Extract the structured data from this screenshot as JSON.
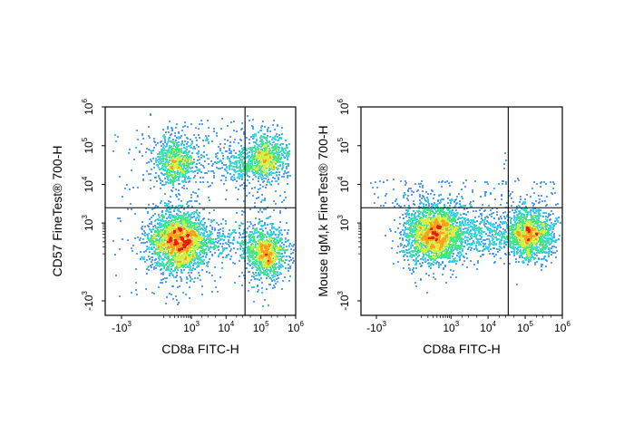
{
  "chart_data": [
    {
      "type": "scatter",
      "subtype": "flow-cytometry-density-dot-plot",
      "title": "",
      "xlabel": "CD8a FITC-H",
      "ylabel": "CD57 FineTest® 700-H",
      "x_scale": "biexponential",
      "y_scale": "biexponential",
      "xlim": [
        -1000,
        1000000
      ],
      "ylim": [
        -1000,
        1000000
      ],
      "x_ticks": [
        {
          "base": "-10",
          "exp": "3",
          "value": -1000
        },
        {
          "base": "10",
          "exp": "3",
          "value": 1000
        },
        {
          "base": "10",
          "exp": "4",
          "value": 10000
        },
        {
          "base": "10",
          "exp": "5",
          "value": 100000
        },
        {
          "base": "10",
          "exp": "6",
          "value": 1000000
        }
      ],
      "y_ticks": [
        {
          "base": "-10",
          "exp": "3",
          "value": -1000
        },
        {
          "base": "10",
          "exp": "3",
          "value": 1000
        },
        {
          "base": "10",
          "exp": "4",
          "value": 10000
        },
        {
          "base": "10",
          "exp": "5",
          "value": 100000
        },
        {
          "base": "10",
          "exp": "6",
          "value": 1000000
        }
      ],
      "quadrant_gate": {
        "x": 35000,
        "y": 2500
      },
      "density_colormap": [
        "#1a10c8",
        "#2a8cff",
        "#19d2e6",
        "#3ce678",
        "#d2f03c",
        "#ffa01e",
        "#e61e14"
      ],
      "populations": [
        {
          "x_center": 400,
          "y_center": 300,
          "relative_size": 1.0
        },
        {
          "x_center": 150000,
          "y_center": 100,
          "relative_size": 0.45
        },
        {
          "x_center": 300,
          "y_center": 40000,
          "relative_size": 0.3
        },
        {
          "x_center": 150000,
          "y_center": 50000,
          "relative_size": 0.35
        },
        {
          "x_center": 25000,
          "y_center": 30000,
          "relative_size": 0.06
        }
      ]
    },
    {
      "type": "scatter",
      "subtype": "flow-cytometry-density-dot-plot",
      "title": "",
      "xlabel": "CD8a FITC-H",
      "ylabel": "Mouse IgM,k FineTest® 700-H",
      "x_scale": "biexponential",
      "y_scale": "biexponential",
      "xlim": [
        -1000,
        1000000
      ],
      "ylim": [
        -1000,
        1000000
      ],
      "x_ticks": [
        {
          "base": "-10",
          "exp": "3",
          "value": -1000
        },
        {
          "base": "10",
          "exp": "3",
          "value": 1000
        },
        {
          "base": "10",
          "exp": "4",
          "value": 10000
        },
        {
          "base": "10",
          "exp": "5",
          "value": 100000
        },
        {
          "base": "10",
          "exp": "6",
          "value": 1000000
        }
      ],
      "y_ticks": [
        {
          "base": "-10",
          "exp": "3",
          "value": -1000
        },
        {
          "base": "10",
          "exp": "3",
          "value": 1000
        },
        {
          "base": "10",
          "exp": "4",
          "value": 10000
        },
        {
          "base": "10",
          "exp": "5",
          "value": 100000
        },
        {
          "base": "10",
          "exp": "6",
          "value": 1000000
        }
      ],
      "quadrant_gate": {
        "x": 35000,
        "y": 2500
      },
      "density_colormap": [
        "#1a10c8",
        "#2a8cff",
        "#19d2e6",
        "#3ce678",
        "#d2f03c",
        "#ffa01e",
        "#e61e14"
      ],
      "populations": [
        {
          "x_center": 300,
          "y_center": 500,
          "relative_size": 1.0
        },
        {
          "x_center": 150000,
          "y_center": 500,
          "relative_size": 0.6
        }
      ]
    }
  ]
}
